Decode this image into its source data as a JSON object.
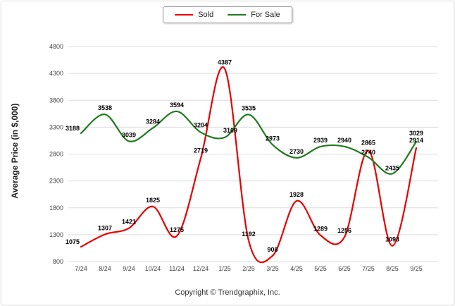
{
  "copyright": "Copyright © Trendgraphix, Inc.",
  "chart_data": {
    "type": "line",
    "title": "",
    "xlabel": "",
    "ylabel": "Average Price (in $,000)",
    "grid": true,
    "legend_position": "top",
    "ylim": [
      800,
      4800
    ],
    "yticks": [
      800,
      1300,
      1800,
      2300,
      2800,
      3300,
      3800,
      4300,
      4800
    ],
    "categories": [
      "7/24",
      "8/24",
      "9/24",
      "10/24",
      "11/24",
      "12/24",
      "1/25",
      "2/25",
      "3/25",
      "4/25",
      "5/25",
      "6/25",
      "7/25",
      "8/25",
      "9/25"
    ],
    "series": [
      {
        "name": "Sold",
        "color": "#e60000",
        "values": [
          1075,
          1307,
          1421,
          1825,
          1275,
          2719,
          4387,
          1192,
          908,
          1928,
          1289,
          1256,
          2865,
          1093,
          2914
        ],
        "label_dx": [
          -12,
          0,
          0,
          0,
          0,
          0,
          0,
          0,
          0,
          0,
          0,
          0,
          0,
          0,
          0
        ],
        "label_dy": [
          -4,
          -6,
          -6,
          -6,
          -6,
          -8,
          -6,
          -6,
          -6,
          -6,
          -6,
          -6,
          -8,
          -6,
          -8
        ]
      },
      {
        "name": "For Sale",
        "color": "#1f7a1f",
        "values": [
          3188,
          3538,
          3039,
          3284,
          3594,
          3204,
          3109,
          3535,
          2973,
          2730,
          2939,
          2940,
          2740,
          2435,
          3029
        ],
        "label_dx": [
          -12,
          0,
          0,
          0,
          0,
          0,
          8,
          0,
          0,
          0,
          0,
          0,
          0,
          0,
          0
        ],
        "label_dy": [
          -4,
          -6,
          -6,
          -6,
          -6,
          -7,
          -7,
          -6,
          -6,
          -6,
          -6,
          -6,
          -4,
          -5,
          -9
        ]
      }
    ],
    "grid_color": "#dcdcdc",
    "tick_color": "#444444",
    "label_color": "#000000"
  }
}
